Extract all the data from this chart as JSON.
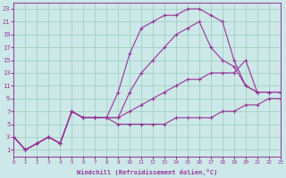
{
  "bg_color": "#cce8e8",
  "line_color": "#993399",
  "grid_color": "#99ccbb",
  "xlim": [
    0,
    23
  ],
  "ylim": [
    0,
    24
  ],
  "xticks": [
    0,
    1,
    2,
    3,
    4,
    5,
    6,
    7,
    8,
    9,
    10,
    11,
    12,
    13,
    14,
    15,
    16,
    17,
    18,
    19,
    20,
    21,
    22,
    23
  ],
  "yticks": [
    1,
    3,
    5,
    7,
    9,
    11,
    13,
    15,
    17,
    19,
    21,
    23
  ],
  "xlabel": "Windchill (Refroidissement éolien,°C)",
  "line1_x": [
    0,
    1,
    2,
    3,
    4,
    5,
    6,
    7,
    8,
    9,
    10,
    11,
    12,
    13,
    14,
    15,
    16,
    17,
    18,
    19,
    20,
    21,
    22,
    23
  ],
  "line1_y": [
    3,
    1,
    2,
    3,
    2,
    7,
    6,
    6,
    6,
    5,
    5,
    5,
    5,
    5,
    6,
    6,
    6,
    6,
    7,
    7,
    8,
    8,
    9,
    9
  ],
  "line2_x": [
    0,
    1,
    2,
    3,
    4,
    5,
    6,
    7,
    8,
    9,
    10,
    11,
    12,
    13,
    14,
    15,
    16,
    17,
    18,
    19,
    20,
    21,
    22,
    23
  ],
  "line2_y": [
    3,
    1,
    2,
    3,
    2,
    7,
    6,
    6,
    6,
    6,
    7,
    8,
    9,
    10,
    11,
    12,
    12,
    13,
    13,
    13,
    15,
    10,
    10,
    10
  ],
  "line3_x": [
    0,
    1,
    2,
    3,
    4,
    5,
    6,
    7,
    8,
    9,
    10,
    11,
    12,
    13,
    14,
    15,
    16,
    17,
    18,
    19,
    20,
    21,
    22,
    23
  ],
  "line3_y": [
    3,
    1,
    2,
    3,
    2,
    7,
    6,
    6,
    6,
    6,
    10,
    13,
    15,
    17,
    19,
    20,
    21,
    17,
    15,
    14,
    11,
    10,
    10,
    10
  ],
  "line4_x": [
    0,
    1,
    2,
    3,
    4,
    5,
    6,
    7,
    8,
    9,
    10,
    11,
    12,
    13,
    14,
    15,
    16,
    17,
    18,
    19,
    20,
    21,
    22,
    23
  ],
  "line4_y": [
    3,
    1,
    2,
    3,
    2,
    7,
    6,
    6,
    6,
    10,
    16,
    20,
    21,
    22,
    22,
    23,
    23,
    22,
    21,
    15,
    11,
    10,
    10,
    10
  ]
}
